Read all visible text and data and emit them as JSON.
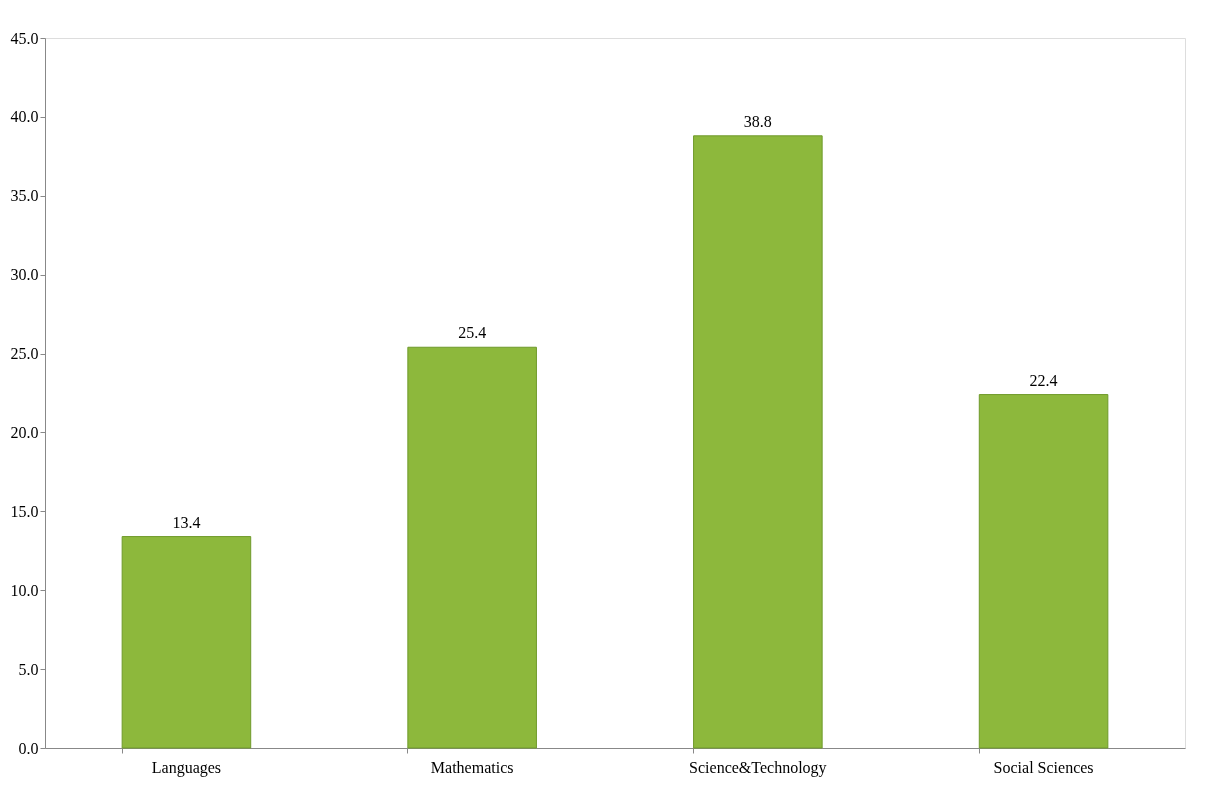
{
  "chart_data": {
    "type": "bar",
    "categories": [
      "Languages",
      "Mathematics",
      "Science&Technology",
      "Social Sciences"
    ],
    "values": [
      13.4,
      25.4,
      38.8,
      22.4
    ],
    "color": "#8db83c",
    "ylim": [
      0,
      45
    ],
    "yticks": [
      {
        "value": 0,
        "label": "0.0"
      },
      {
        "value": 5,
        "label": "5.0"
      },
      {
        "value": 10,
        "label": "10.0"
      },
      {
        "value": 15,
        "label": "15.0"
      },
      {
        "value": 20,
        "label": "20.0"
      },
      {
        "value": 25,
        "label": "25.0"
      },
      {
        "value": 30,
        "label": "30.0"
      },
      {
        "value": 35,
        "label": "35.0"
      },
      {
        "value": 40,
        "label": "40.0"
      },
      {
        "value": 45,
        "label": "45.0"
      }
    ],
    "data_labels": true,
    "grid": false
  }
}
